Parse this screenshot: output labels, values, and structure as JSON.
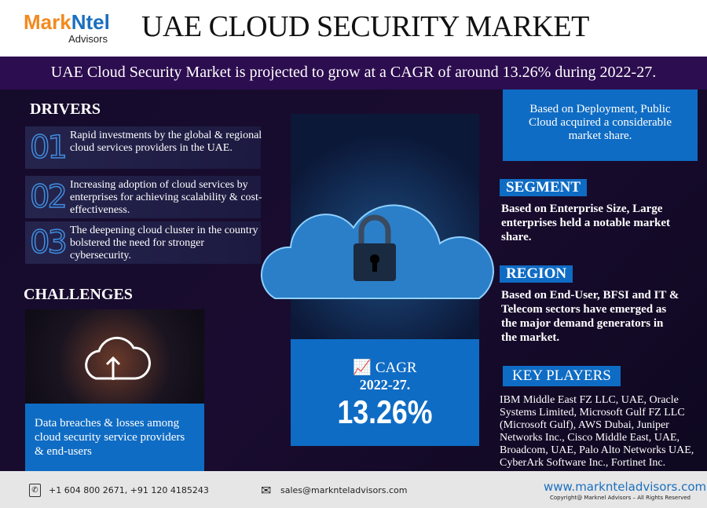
{
  "logo": {
    "brand_a": "Mark",
    "brand_b": "Ntel",
    "sub": "Advisors"
  },
  "title": "UAE CLOUD SECURITY MARKET",
  "banner": "UAE Cloud Security Market is projected to grow at a CAGR of around 13.26% during 2022-27.",
  "drivers": {
    "heading": "DRIVERS",
    "items": [
      {
        "num": "01",
        "text": "Rapid investments by the global & regional cloud services providers in the UAE."
      },
      {
        "num": "02",
        "text": "Increasing adoption of cloud services by enterprises for achieving scalability & cost-effectiveness."
      },
      {
        "num": "03",
        "text": "The deepening cloud cluster in the country bolstered the need for stronger cybersecurity."
      }
    ]
  },
  "challenges": {
    "heading": "CHALLENGES",
    "text": "Data breaches & losses among cloud security service providers & end-users"
  },
  "cagr": {
    "label": "CAGR",
    "period": "2022-27.",
    "value": "13.26%"
  },
  "deployment": "Based on Deployment, Public Cloud acquired a considerable market share.",
  "segment": {
    "heading": "SEGMENT",
    "text": "Based on Enterprise Size, Large enterprises held a notable market share."
  },
  "region": {
    "heading": "REGION",
    "text": "Based on End-User, BFSI and IT & Telecom sectors have emerged as the major demand generators in the market."
  },
  "key_players": {
    "heading": "KEY PLAYERS",
    "text": "IBM Middle East FZ LLC, UAE, Oracle Systems Limited, Microsoft Gulf FZ LLC (Microsoft Gulf), AWS Dubai, Juniper Networks Inc., Cisco Middle East, UAE, Broadcom, UAE, Palo Alto Networks UAE, CyberArk Software Inc., Fortinet Inc."
  },
  "footer": {
    "phone": "+1 604 800 2671, +91 120 4185243",
    "email": "sales@marknteladvisors.com",
    "website": "www.marknteladvisors.com",
    "copyright": "Copyright@ Marknel Advisors – All Rights Reserved"
  }
}
